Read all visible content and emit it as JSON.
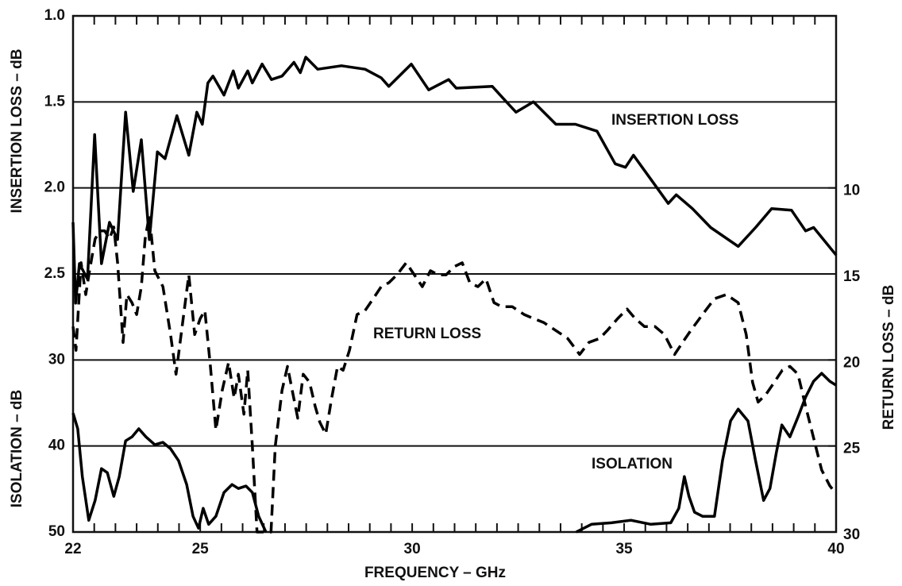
{
  "chart_data": {
    "type": "line",
    "xlabel": "FREQUENCY – GHz",
    "ylabel": "INSERTION LOSS – dB",
    "y2label": "RETURN LOSS – dB",
    "y3label": "ISOLATION – dB",
    "xlim": [
      22,
      40
    ],
    "xticks": [
      22,
      25,
      30,
      35,
      40
    ],
    "xticks_minor": [
      22,
      22.5,
      23,
      23.5,
      24,
      24.5,
      25,
      25.5,
      26,
      26.5,
      27,
      27.5,
      28,
      28.5,
      29,
      29.5,
      30,
      30.5,
      31,
      31.5,
      32,
      32.5,
      33,
      33.5,
      34,
      34.5,
      35,
      35.5,
      36,
      36.5,
      37,
      37.5,
      38,
      38.5,
      39,
      39.5,
      40
    ],
    "ylim": [
      4,
      1
    ],
    "yticks": [
      {
        "value": 1,
        "label": "1.0"
      },
      1.5,
      {
        "value": 2,
        "label": "2.0"
      },
      2.5
    ],
    "y3lim": [
      50,
      -10
    ],
    "y3ticks": [
      30,
      40,
      50
    ],
    "y2lim": [
      30,
      0
    ],
    "y2ticks": [
      10,
      15,
      20,
      25,
      30
    ],
    "grid": true,
    "annotations": [
      "INSERTION LOSS",
      "RETURN LOSS",
      "ISOLATION"
    ],
    "series": [
      {
        "name": "INSERTION LOSS",
        "axis": "y",
        "color": "#000000",
        "style": "solid",
        "x": [
          22.0,
          22.06,
          22.15,
          22.34,
          22.51,
          22.67,
          22.86,
          23.05,
          23.24,
          23.42,
          23.61,
          23.8,
          23.99,
          24.17,
          24.45,
          24.73,
          24.92,
          25.05,
          25.18,
          25.3,
          25.56,
          25.78,
          25.9,
          26.12,
          26.23,
          26.46,
          26.68,
          26.93,
          27.21,
          27.36,
          27.49,
          27.77,
          28.33,
          28.89,
          29.27,
          29.45,
          29.98,
          30.39,
          30.86,
          31.04,
          31.89,
          32.26,
          32.45,
          32.86,
          33.39,
          33.85,
          34.36,
          34.79,
          35.03,
          35.22,
          35.63,
          36.04,
          36.23,
          36.61,
          37.04,
          37.69,
          38.1,
          38.48,
          38.95,
          39.28,
          39.47,
          40.0
        ],
        "values": [
          2.2,
          2.67,
          2.44,
          2.53,
          1.69,
          2.44,
          2.2,
          2.3,
          1.56,
          2.02,
          1.72,
          2.3,
          1.79,
          1.83,
          1.58,
          1.81,
          1.56,
          1.63,
          1.39,
          1.35,
          1.46,
          1.32,
          1.42,
          1.32,
          1.39,
          1.28,
          1.37,
          1.35,
          1.27,
          1.33,
          1.24,
          1.31,
          1.29,
          1.31,
          1.36,
          1.41,
          1.28,
          1.43,
          1.37,
          1.42,
          1.41,
          1.51,
          1.56,
          1.5,
          1.63,
          1.63,
          1.67,
          1.86,
          1.88,
          1.81,
          1.95,
          2.09,
          2.04,
          2.12,
          2.23,
          2.34,
          2.23,
          2.12,
          2.13,
          2.25,
          2.23,
          2.39
        ]
      },
      {
        "name": "RETURN LOSS",
        "axis": "y2",
        "color": "#000000",
        "style": "dashed",
        "x": [
          22.0,
          22.07,
          22.19,
          22.3,
          22.39,
          22.52,
          22.64,
          22.75,
          22.86,
          22.96,
          23.05,
          23.18,
          23.27,
          23.39,
          23.5,
          23.61,
          23.7,
          23.8,
          23.93,
          24.12,
          24.3,
          24.43,
          24.55,
          24.73,
          24.87,
          25.0,
          25.11,
          25.24,
          25.37,
          25.52,
          25.67,
          25.8,
          25.9,
          26.03,
          26.12,
          26.23,
          26.34,
          26.67,
          26.77,
          26.93,
          27.06,
          27.17,
          27.3,
          27.43,
          27.58,
          27.71,
          27.82,
          27.96,
          28.1,
          28.24,
          28.37,
          28.52,
          28.7,
          28.89,
          29.08,
          29.27,
          29.45,
          29.64,
          29.86,
          30.05,
          30.24,
          30.43,
          30.61,
          30.8,
          30.99,
          31.18,
          31.36,
          31.55,
          31.74,
          31.93,
          32.11,
          32.36,
          32.64,
          32.86,
          33.1,
          33.39,
          33.67,
          33.95,
          34.17,
          34.42,
          34.6,
          34.85,
          35.07,
          35.26,
          35.48,
          35.73,
          35.95,
          36.19,
          36.38,
          36.57,
          36.85,
          37.13,
          37.41,
          37.69,
          37.88,
          38.03,
          38.16,
          38.35,
          38.54,
          38.73,
          38.91,
          39.1,
          39.28,
          39.47,
          39.66,
          39.85,
          40.0
        ],
        "values": [
          18.06,
          19.44,
          14.35,
          16.2,
          14.8,
          12.96,
          12.5,
          12.5,
          12.96,
          12.27,
          14.35,
          18.98,
          16.2,
          16.67,
          17.36,
          15.74,
          12.96,
          11.57,
          14.81,
          15.74,
          18.52,
          20.83,
          18.52,
          15.05,
          18.52,
          17.59,
          17.13,
          20.37,
          24.07,
          21.76,
          20.14,
          22.22,
          20.83,
          23.15,
          20.6,
          25.0,
          30,
          30,
          25.0,
          21.76,
          20.37,
          21.76,
          23.38,
          20.83,
          21.3,
          22.69,
          23.61,
          24.31,
          22.22,
          20.37,
          20.6,
          19.44,
          17.36,
          17.13,
          16.44,
          15.74,
          15.51,
          15.05,
          14.35,
          15.05,
          15.74,
          14.81,
          15.05,
          15.05,
          14.58,
          14.35,
          15.51,
          15.74,
          15.28,
          16.67,
          16.9,
          16.9,
          17.36,
          17.59,
          17.82,
          18.29,
          18.75,
          19.68,
          18.98,
          18.75,
          18.29,
          17.59,
          17.04,
          17.59,
          18.06,
          18.06,
          18.52,
          19.68,
          18.98,
          18.29,
          17.36,
          16.44,
          16.2,
          16.67,
          18.52,
          21.3,
          22.45,
          21.99,
          21.3,
          20.6,
          20.37,
          20.83,
          22.69,
          24.54,
          26.39,
          27.31,
          27.78
        ]
      },
      {
        "name": "ISOLATION",
        "axis": "y3",
        "color": "#000000",
        "style": "solid",
        "x": [
          22.0,
          22.11,
          22.22,
          22.37,
          22.52,
          22.67,
          22.81,
          22.96,
          23.09,
          23.24,
          23.39,
          23.55,
          23.72,
          23.93,
          24.12,
          24.3,
          24.49,
          24.68,
          24.83,
          24.96,
          25.07,
          25.2,
          25.37,
          25.56,
          25.75,
          25.9,
          26.08,
          26.23,
          26.38,
          26.55,
          30,
          33.87,
          34.23,
          34.7,
          35.16,
          35.63,
          36.1,
          36.29,
          36.42,
          36.53,
          36.66,
          36.85,
          37.13,
          37.32,
          37.51,
          37.69,
          37.92,
          38.1,
          38.29,
          38.44,
          38.59,
          38.72,
          38.91,
          39.1,
          39.28,
          39.47,
          39.66,
          39.85,
          40.0
        ],
        "values": [
          36.17,
          38.0,
          43.56,
          48.63,
          46.33,
          42.63,
          43.1,
          45.86,
          43.56,
          39.4,
          38.94,
          38.0,
          38.94,
          39.86,
          39.58,
          40.32,
          41.71,
          44.48,
          48.17,
          49.56,
          47.25,
          49.1,
          48.17,
          45.4,
          44.48,
          44.94,
          44.66,
          45.4,
          48.17,
          50.0,
          null,
          50.0,
          49.1,
          48.93,
          48.63,
          49.1,
          48.93,
          47.25,
          43.56,
          45.86,
          47.7,
          48.17,
          48.17,
          41.71,
          37.09,
          35.71,
          37.09,
          41.71,
          46.33,
          44.94,
          40.79,
          37.56,
          38.94,
          36.63,
          34.32,
          32.47,
          31.55,
          32.47,
          32.94
        ]
      }
    ]
  }
}
